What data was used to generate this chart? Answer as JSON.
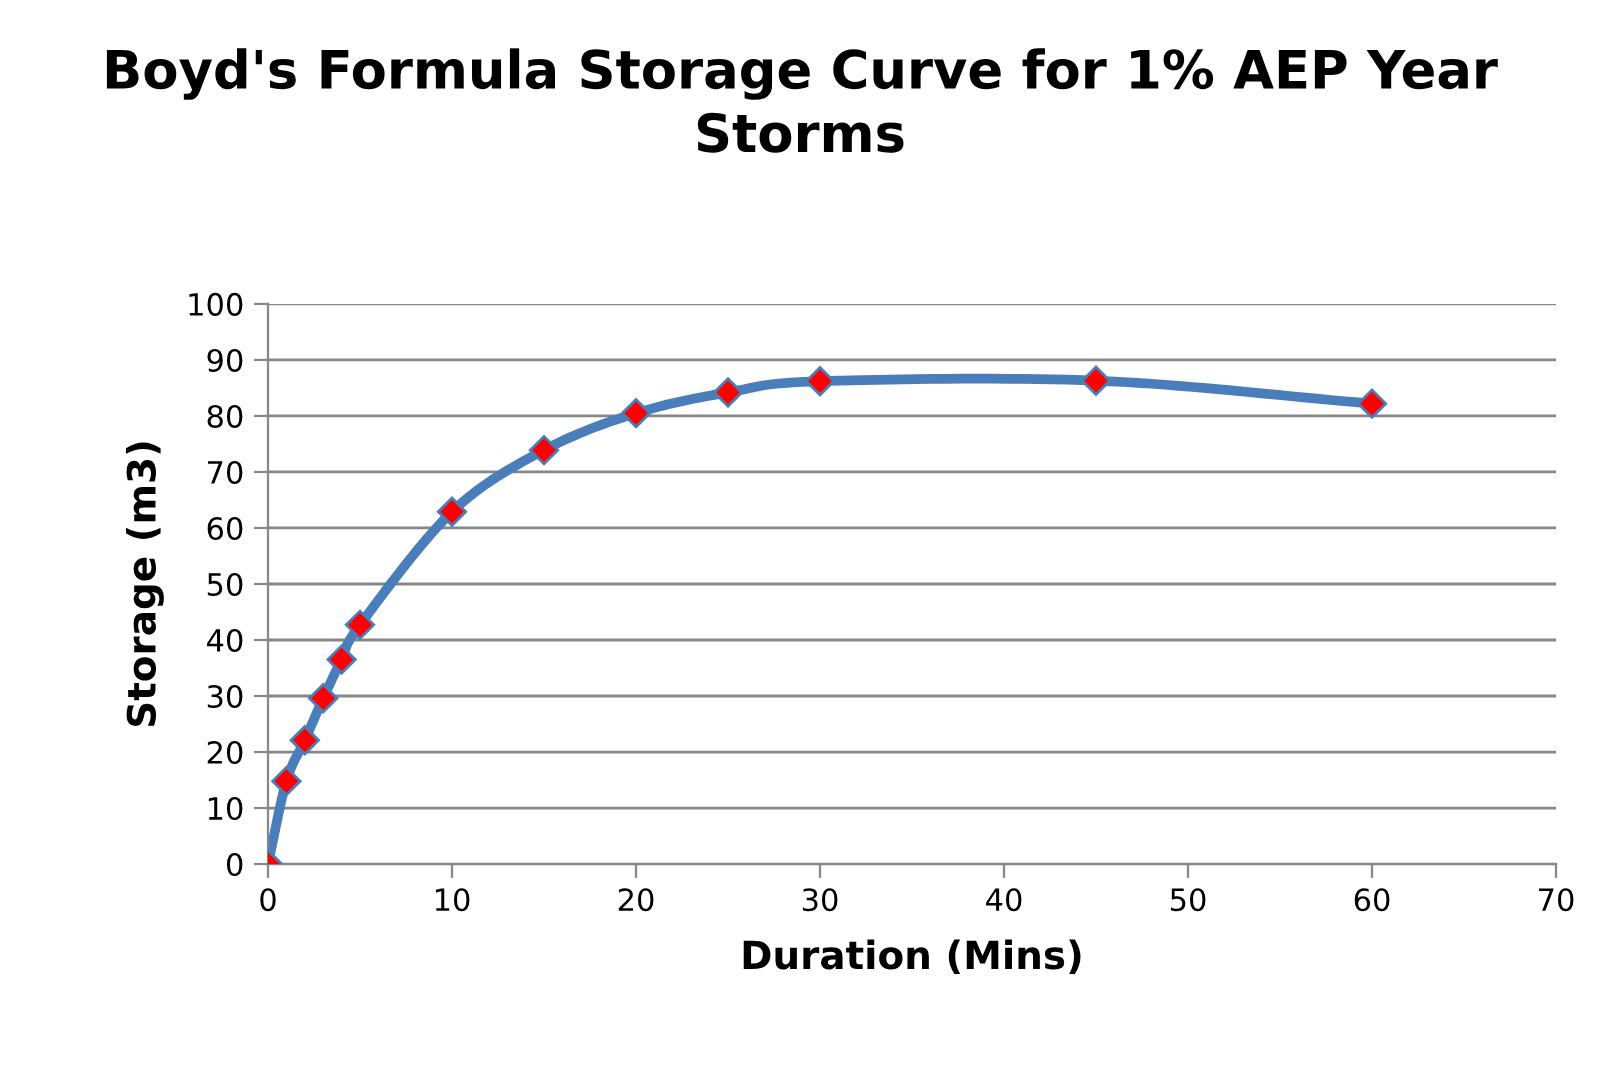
{
  "chart_data": {
    "type": "line",
    "title": "Boyd's Formula Storage Curve for 1% AEP Year Storms",
    "xlabel": "Duration (Mins)",
    "ylabel": "Storage (m3)",
    "x": [
      0,
      1,
      2,
      3,
      4,
      5,
      10,
      15,
      20,
      25,
      30,
      45,
      60
    ],
    "series": [
      {
        "color": "#4a7ebb",
        "values": [
          0,
          14.8,
          22.1,
          29.6,
          36.5,
          42.7,
          62.9,
          73.9,
          80.5,
          84.2,
          86.2,
          86.3,
          82.2
        ]
      }
    ],
    "marker": "diamond",
    "xlim": [
      0,
      70
    ],
    "xticks": [
      0,
      10,
      20,
      30,
      40,
      50,
      60,
      70
    ],
    "ylim": [
      0,
      100
    ],
    "yticks": [
      0,
      10,
      20,
      30,
      40,
      50,
      60,
      70,
      80,
      90,
      100
    ],
    "grid": "y",
    "legend": false
  }
}
